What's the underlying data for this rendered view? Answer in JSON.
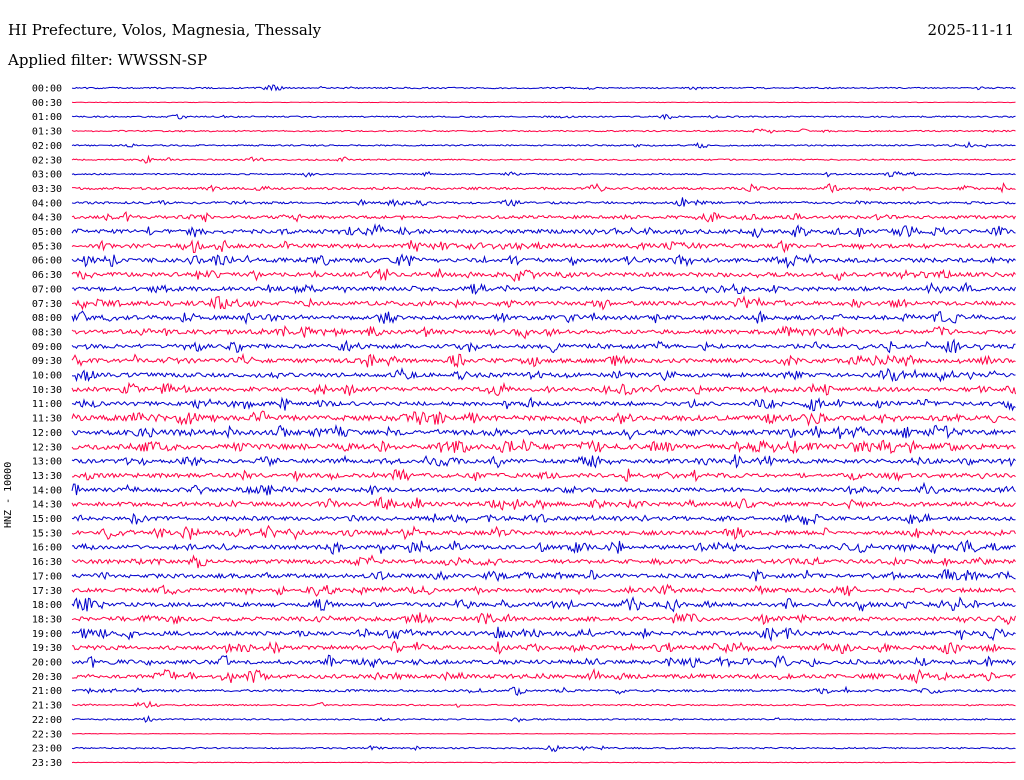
{
  "header": {
    "station": "HI Prefecture, Volos, Magnesia, Thessaly",
    "date": "2025-11-11",
    "filter": "Applied filter: WWSSN-SP"
  },
  "colors": {
    "even_trace": "#0000cc",
    "odd_trace": "#ff0044"
  },
  "chart_data": {
    "type": "line",
    "subtype": "helicorder",
    "title": "",
    "ylabel": "HNZ - 10000",
    "xlabel": "",
    "row_minutes": 30,
    "series": [
      {
        "time": "00:00",
        "activity": 1
      },
      {
        "time": "00:30",
        "activity": 0
      },
      {
        "time": "01:00",
        "activity": 1
      },
      {
        "time": "01:30",
        "activity": 1
      },
      {
        "time": "02:00",
        "activity": 1
      },
      {
        "time": "02:30",
        "activity": 1
      },
      {
        "time": "03:00",
        "activity": 1
      },
      {
        "time": "03:30",
        "activity": 2
      },
      {
        "time": "04:00",
        "activity": 2
      },
      {
        "time": "04:30",
        "activity": 3
      },
      {
        "time": "05:00",
        "activity": 4
      },
      {
        "time": "05:30",
        "activity": 4
      },
      {
        "time": "06:00",
        "activity": 4
      },
      {
        "time": "06:30",
        "activity": 4
      },
      {
        "time": "07:00",
        "activity": 4
      },
      {
        "time": "07:30",
        "activity": 4
      },
      {
        "time": "08:00",
        "activity": 4
      },
      {
        "time": "08:30",
        "activity": 4
      },
      {
        "time": "09:00",
        "activity": 4
      },
      {
        "time": "09:30",
        "activity": 4
      },
      {
        "time": "10:00",
        "activity": 4
      },
      {
        "time": "10:30",
        "activity": 4
      },
      {
        "time": "11:00",
        "activity": 4
      },
      {
        "time": "11:30",
        "activity": 5
      },
      {
        "time": "12:00",
        "activity": 5
      },
      {
        "time": "12:30",
        "activity": 5
      },
      {
        "time": "13:00",
        "activity": 4
      },
      {
        "time": "13:30",
        "activity": 4
      },
      {
        "time": "14:00",
        "activity": 4
      },
      {
        "time": "14:30",
        "activity": 4
      },
      {
        "time": "15:00",
        "activity": 4
      },
      {
        "time": "15:30",
        "activity": 4
      },
      {
        "time": "16:00",
        "activity": 4
      },
      {
        "time": "16:30",
        "activity": 4
      },
      {
        "time": "17:00",
        "activity": 4
      },
      {
        "time": "17:30",
        "activity": 4
      },
      {
        "time": "18:00",
        "activity": 4
      },
      {
        "time": "18:30",
        "activity": 4
      },
      {
        "time": "19:00",
        "activity": 4
      },
      {
        "time": "19:30",
        "activity": 4
      },
      {
        "time": "20:00",
        "activity": 4
      },
      {
        "time": "20:30",
        "activity": 4
      },
      {
        "time": "21:00",
        "activity": 2
      },
      {
        "time": "21:30",
        "activity": 1
      },
      {
        "time": "22:00",
        "activity": 1
      },
      {
        "time": "22:30",
        "activity": 0
      },
      {
        "time": "23:00",
        "activity": 1
      },
      {
        "time": "23:30",
        "activity": 0
      }
    ]
  }
}
